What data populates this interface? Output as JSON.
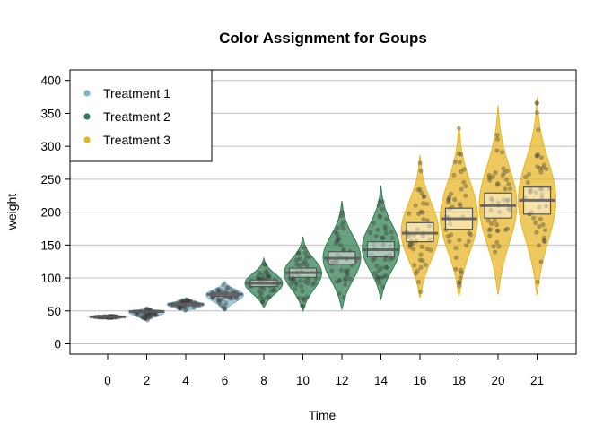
{
  "chart_data": {
    "type": "violin",
    "title": "Color Assignment for Goups",
    "xlabel": "Time",
    "ylabel": "weight",
    "ylim": [
      -15,
      415
    ],
    "yticks": [
      0,
      50,
      100,
      150,
      200,
      250,
      300,
      350,
      400
    ],
    "grid": "horizontal",
    "legend_position": "top-left",
    "legend": [
      {
        "name": "Treatment 1",
        "color": "#7fb7c9"
      },
      {
        "name": "Treatment 2",
        "color": "#2e7d4f"
      },
      {
        "name": "Treatment 3",
        "color": "#e8b422"
      }
    ],
    "categories": [
      "0",
      "2",
      "4",
      "6",
      "8",
      "10",
      "12",
      "14",
      "16",
      "18",
      "20",
      "21"
    ],
    "groups": [
      {
        "time": "0",
        "treatment": "Treatment 1",
        "min": 39,
        "max": 43,
        "mean": 41.0,
        "ci": [
          40.5,
          41.5
        ]
      },
      {
        "time": "2",
        "treatment": "Treatment 1",
        "min": 35,
        "max": 55,
        "mean": 49.2,
        "ci": [
          48.0,
          50.5
        ]
      },
      {
        "time": "4",
        "treatment": "Treatment 1",
        "min": 48,
        "max": 70,
        "mean": 60.0,
        "ci": [
          58.0,
          62.0
        ]
      },
      {
        "time": "6",
        "treatment": "Treatment 1",
        "min": 50,
        "max": 95,
        "mean": 75.0,
        "ci": [
          72.0,
          78.0
        ]
      },
      {
        "time": "8",
        "treatment": "Treatment 2",
        "min": 55,
        "max": 130,
        "mean": 92.0,
        "ci": [
          87.0,
          97.0
        ]
      },
      {
        "time": "10",
        "treatment": "Treatment 2",
        "min": 50,
        "max": 163,
        "mean": 108.0,
        "ci": [
          101.0,
          115.0
        ]
      },
      {
        "time": "12",
        "treatment": "Treatment 2",
        "min": 53,
        "max": 217,
        "mean": 130.0,
        "ci": [
          121.0,
          140.0
        ]
      },
      {
        "time": "14",
        "treatment": "Treatment 2",
        "min": 68,
        "max": 240,
        "mean": 143.0,
        "ci": [
          132.0,
          155.0
        ]
      },
      {
        "time": "16",
        "treatment": "Treatment 3",
        "min": 70,
        "max": 287,
        "mean": 168.0,
        "ci": [
          155.0,
          184.0
        ]
      },
      {
        "time": "18",
        "treatment": "Treatment 3",
        "min": 72,
        "max": 333,
        "mean": 190.0,
        "ci": [
          174.0,
          206.0
        ]
      },
      {
        "time": "20",
        "treatment": "Treatment 3",
        "min": 75,
        "max": 362,
        "mean": 210.0,
        "ci": [
          191.0,
          229.0
        ]
      },
      {
        "time": "21",
        "treatment": "Treatment 3",
        "min": 74,
        "max": 374,
        "mean": 218.0,
        "ci": [
          197.0,
          238.0
        ]
      }
    ]
  }
}
